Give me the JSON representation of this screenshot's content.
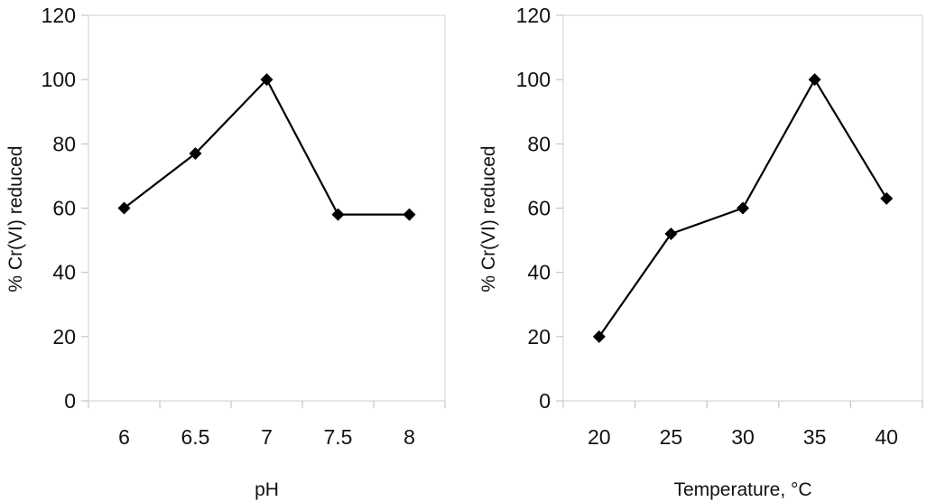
{
  "chart_data": [
    {
      "type": "line",
      "title": "",
      "xlabel": "pH",
      "ylabel": "% Cr(VI) reduced",
      "categories": [
        "6",
        "6.5",
        "7",
        "7.5",
        "8"
      ],
      "values": [
        60,
        77,
        100,
        58,
        58
      ],
      "ylim": [
        0,
        120
      ],
      "yticks": [
        "0",
        "20",
        "40",
        "60",
        "80",
        "100",
        "120"
      ],
      "grid": false,
      "marker": "diamond",
      "color": "#000000"
    },
    {
      "type": "line",
      "title": "",
      "xlabel": "Temperature, °C",
      "ylabel": "% Cr(VI) reduced",
      "categories": [
        "20",
        "25",
        "30",
        "35",
        "40"
      ],
      "values": [
        20,
        52,
        60,
        100,
        63
      ],
      "ylim": [
        0,
        120
      ],
      "yticks": [
        "0",
        "20",
        "40",
        "60",
        "80",
        "100",
        "120"
      ],
      "grid": false,
      "marker": "diamond",
      "color": "#000000"
    }
  ]
}
